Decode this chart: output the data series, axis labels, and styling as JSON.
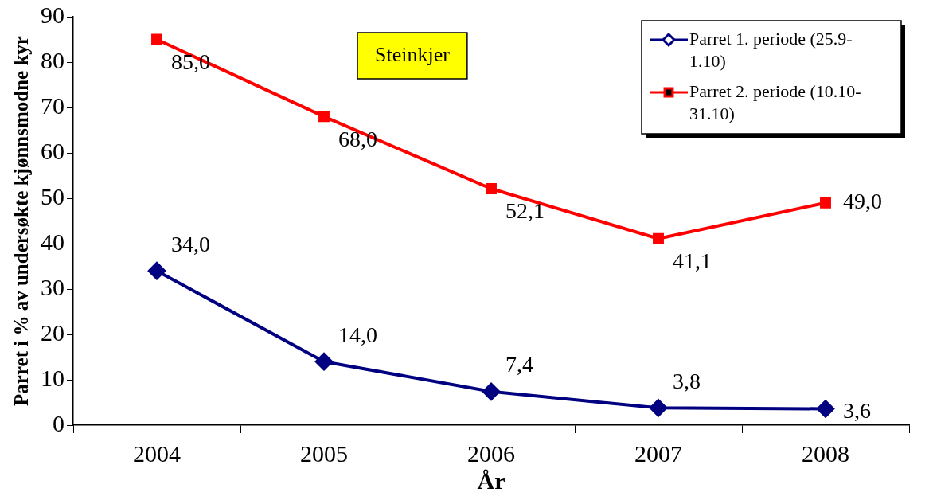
{
  "chart_data": {
    "type": "line",
    "xlabel": "År",
    "ylabel": "Parret i % av undersøkte kjønnsmodne kyr",
    "categories": [
      "2004",
      "2005",
      "2006",
      "2007",
      "2008"
    ],
    "series": [
      {
        "name": "Parret 1. periode (25.9-1.10)",
        "color": "#000080",
        "marker": "diamond",
        "values": [
          34,
          14,
          7.4,
          3.8,
          3.6
        ],
        "value_labels": [
          "34,0",
          "14,0",
          "7,4",
          "3,8",
          "3,6"
        ]
      },
      {
        "name": "Parret 2. periode (10.10-31.10)",
        "color": "#ff0000",
        "marker": "square",
        "values": [
          85,
          68,
          52.1,
          41.1,
          49
        ],
        "value_labels": [
          "85,0",
          "68,0",
          "52,1",
          "41,1",
          "49,0"
        ]
      }
    ],
    "ylim": [
      0,
      90
    ],
    "yticks": [
      0,
      10,
      20,
      30,
      40,
      50,
      60,
      70,
      80,
      90
    ],
    "grid": false,
    "legend": "top right",
    "line_style": "solid",
    "annotations": [
      "Steinkjer"
    ]
  }
}
